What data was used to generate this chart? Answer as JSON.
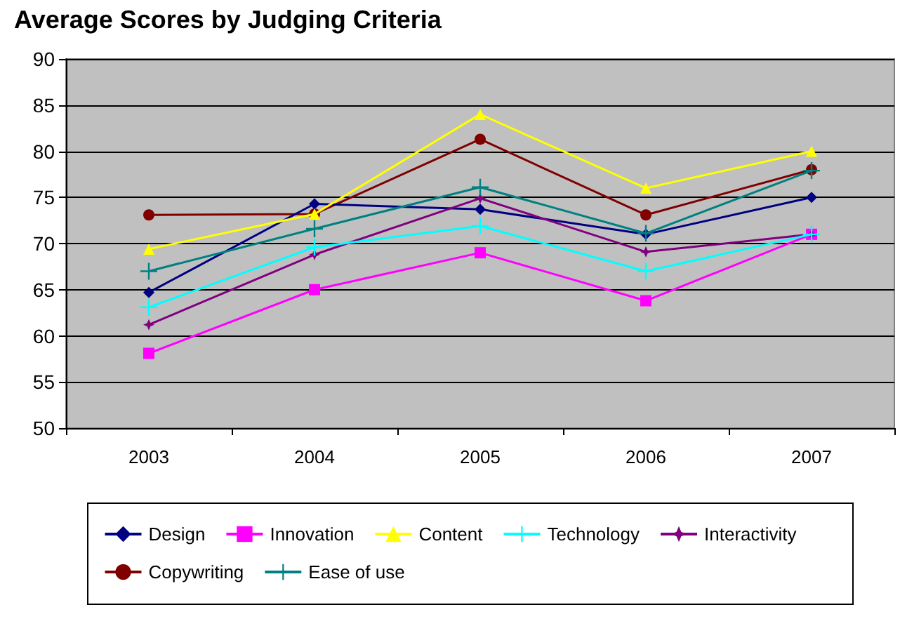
{
  "chart_data": {
    "type": "line",
    "title": "Average Scores by Judging Criteria",
    "categories": [
      "2003",
      "2004",
      "2005",
      "2006",
      "2007"
    ],
    "ylim": [
      50,
      90
    ],
    "yticks": [
      50,
      55,
      60,
      65,
      70,
      75,
      80,
      85,
      90
    ],
    "grid": "y",
    "legend": "bottom",
    "series": [
      {
        "name": "Design",
        "color": "#000080",
        "marker": "diamond",
        "values": [
          64.7,
          74.3,
          73.7,
          71,
          75
        ]
      },
      {
        "name": "Innovation",
        "color": "#ff00ff",
        "marker": "square",
        "values": [
          58.1,
          65,
          69,
          63.8,
          71
        ]
      },
      {
        "name": "Content",
        "color": "#ffff00",
        "marker": "triangle",
        "values": [
          69.4,
          73.2,
          84,
          76,
          80
        ]
      },
      {
        "name": "Technology",
        "color": "#00ffff",
        "marker": "cross",
        "values": [
          63.1,
          69.6,
          71.9,
          67,
          71
        ]
      },
      {
        "name": "Interactivity",
        "color": "#800080",
        "marker": "star",
        "values": [
          61.2,
          68.8,
          74.9,
          69.1,
          71
        ]
      },
      {
        "name": "Copywriting",
        "color": "#800000",
        "marker": "circle",
        "values": [
          73.1,
          73.2,
          81.3,
          73.1,
          78
        ]
      },
      {
        "name": "Ease of use",
        "color": "#008080",
        "marker": "cross",
        "values": [
          67,
          71.6,
          76.1,
          71.1,
          77.9
        ]
      }
    ]
  }
}
